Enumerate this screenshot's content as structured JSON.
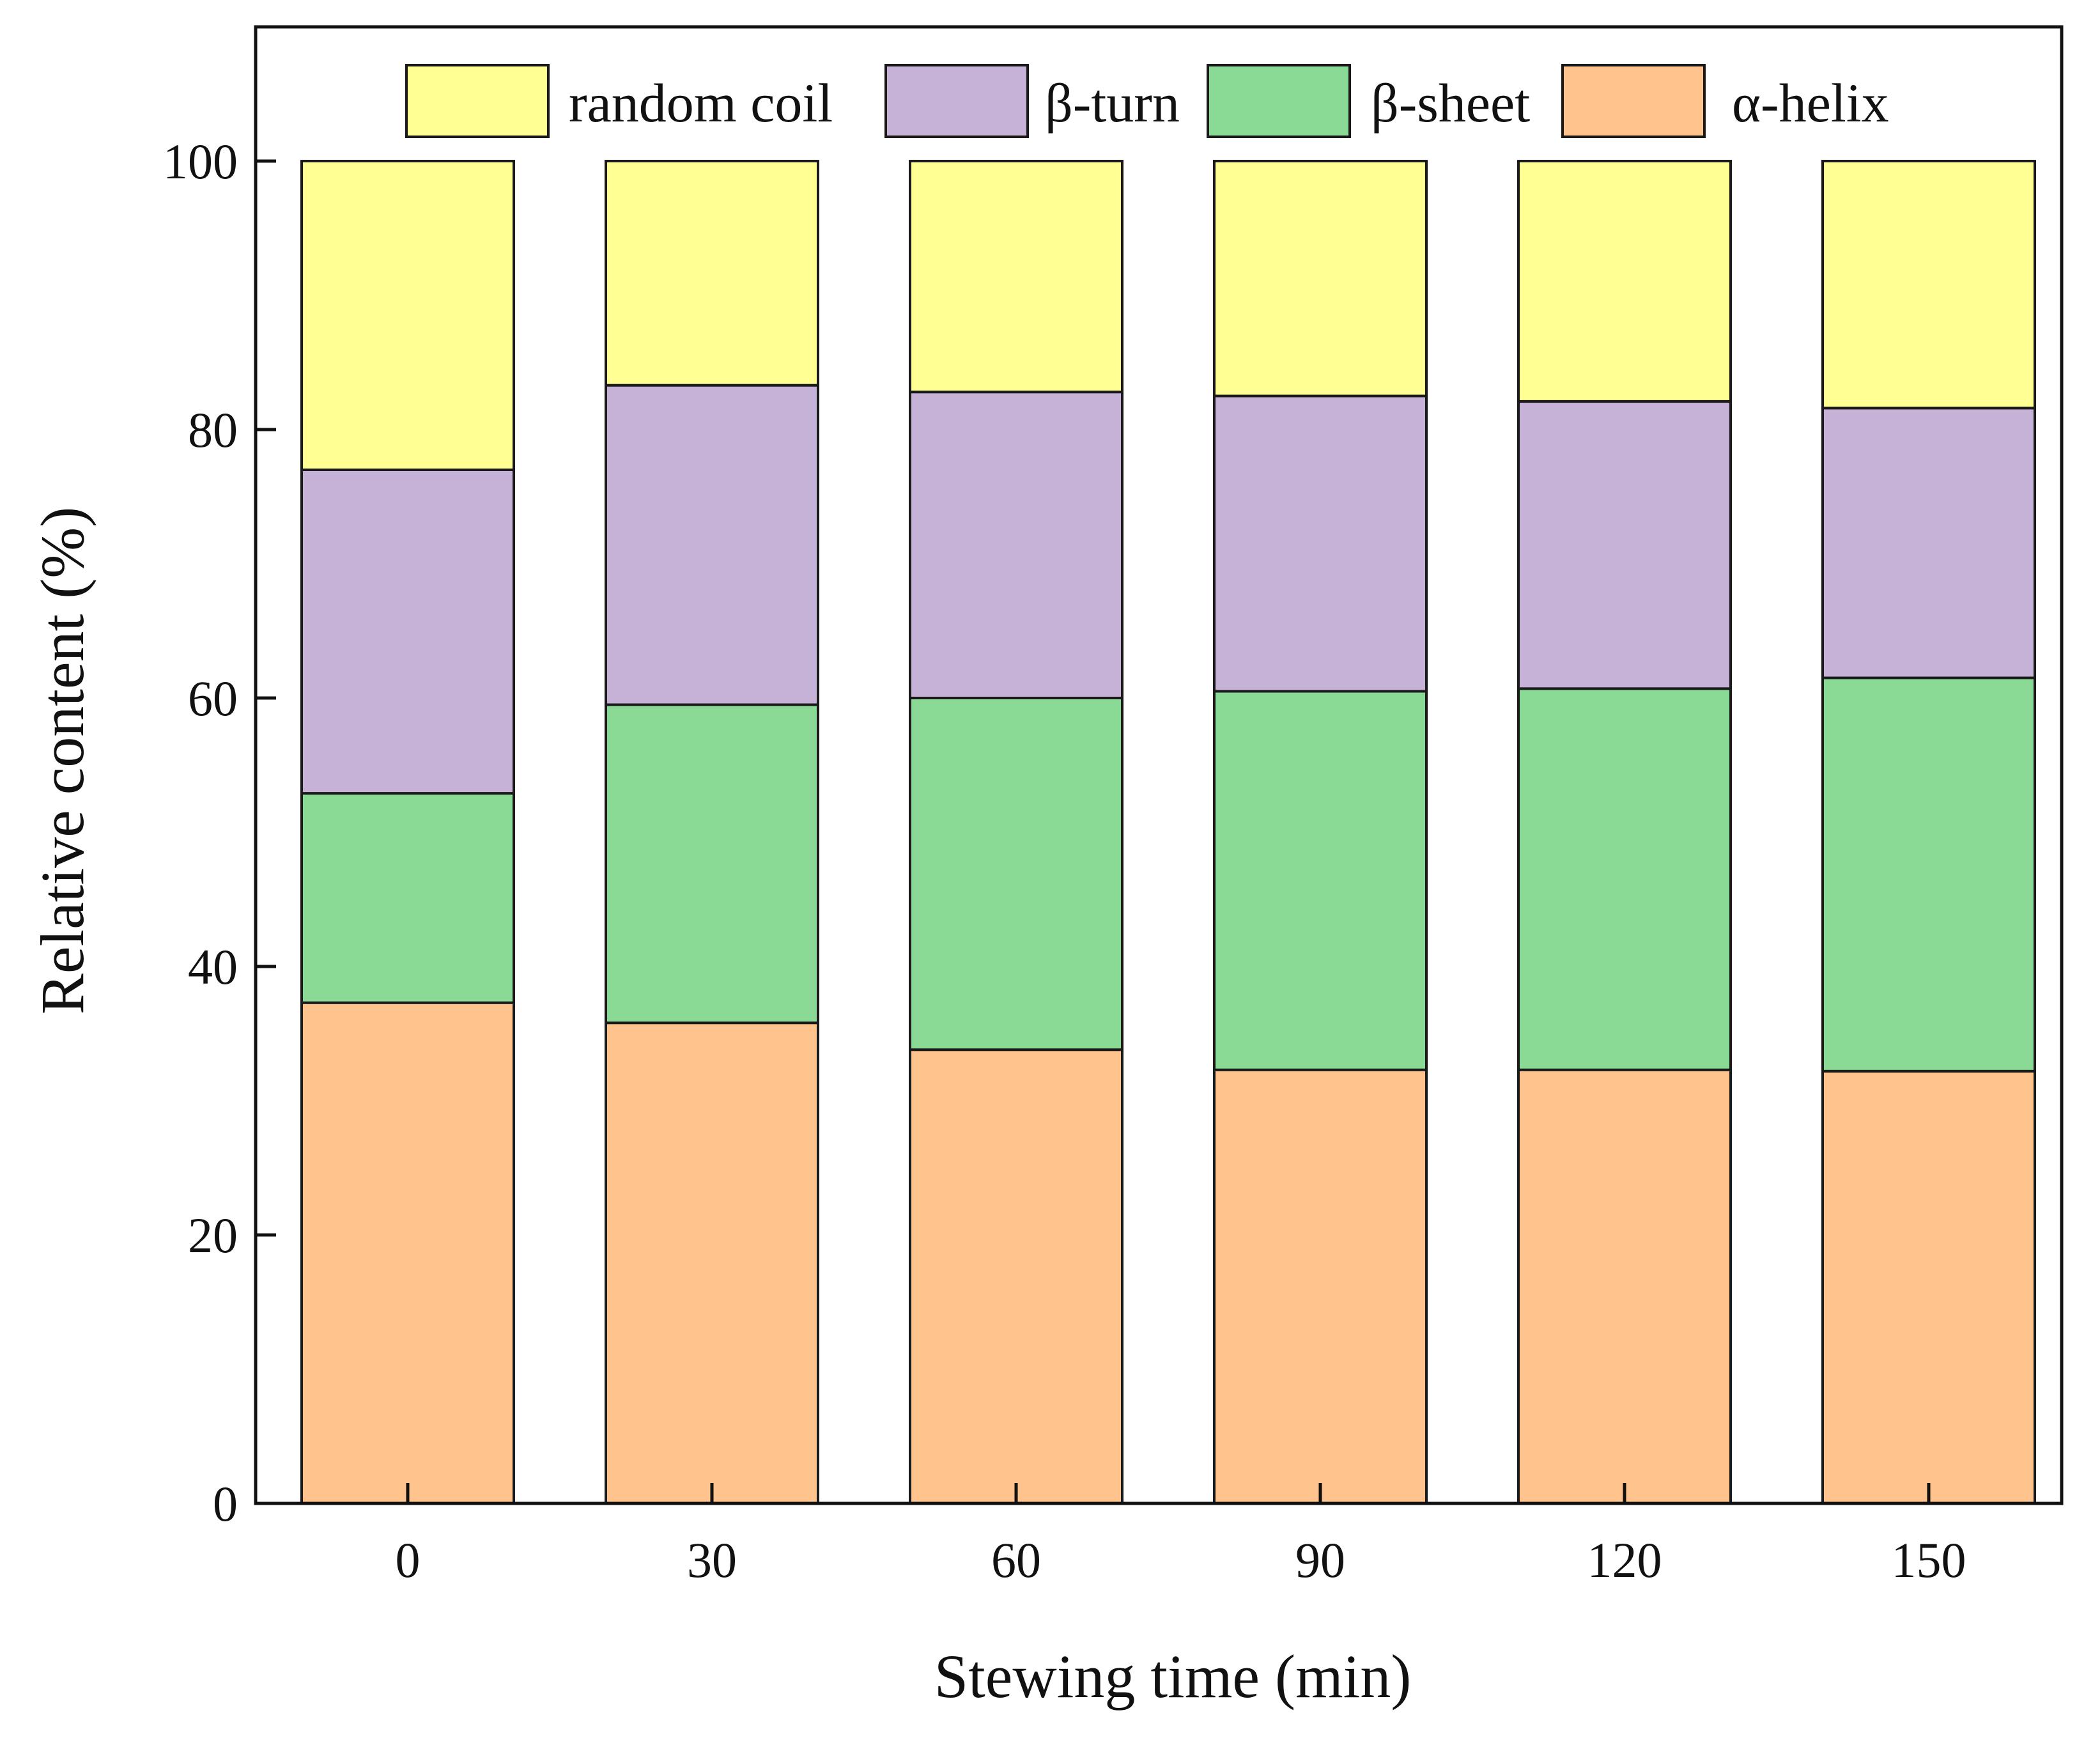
{
  "chart_data": {
    "type": "bar",
    "stacked": true,
    "title": "",
    "xlabel": "Stewing time (min)",
    "ylabel": "Relative content (%)",
    "categories": [
      "0",
      "30",
      "60",
      "90",
      "120",
      "150"
    ],
    "ylim": [
      0,
      110
    ],
    "yticks": [
      0,
      20,
      40,
      60,
      80,
      100
    ],
    "grid": false,
    "legend_position": "top",
    "series": [
      {
        "name": "α-helix",
        "color": "#FFC48E",
        "values": [
          37.3,
          35.8,
          33.8,
          32.3,
          32.3,
          32.2
        ]
      },
      {
        "name": "β-sheet",
        "color": "#8ADA96",
        "values": [
          15.6,
          23.7,
          26.2,
          28.2,
          28.4,
          29.3
        ]
      },
      {
        "name": "β-turn",
        "color": "#C6B1D7",
        "values": [
          24.1,
          23.8,
          22.8,
          22.0,
          21.4,
          20.1
        ]
      },
      {
        "name": "random coil",
        "color": "#FFFF94",
        "values": [
          23.0,
          16.7,
          17.2,
          17.5,
          17.9,
          18.4
        ]
      }
    ],
    "legend_order": [
      "random coil",
      "β-turn",
      "β-sheet",
      "α-helix"
    ]
  }
}
